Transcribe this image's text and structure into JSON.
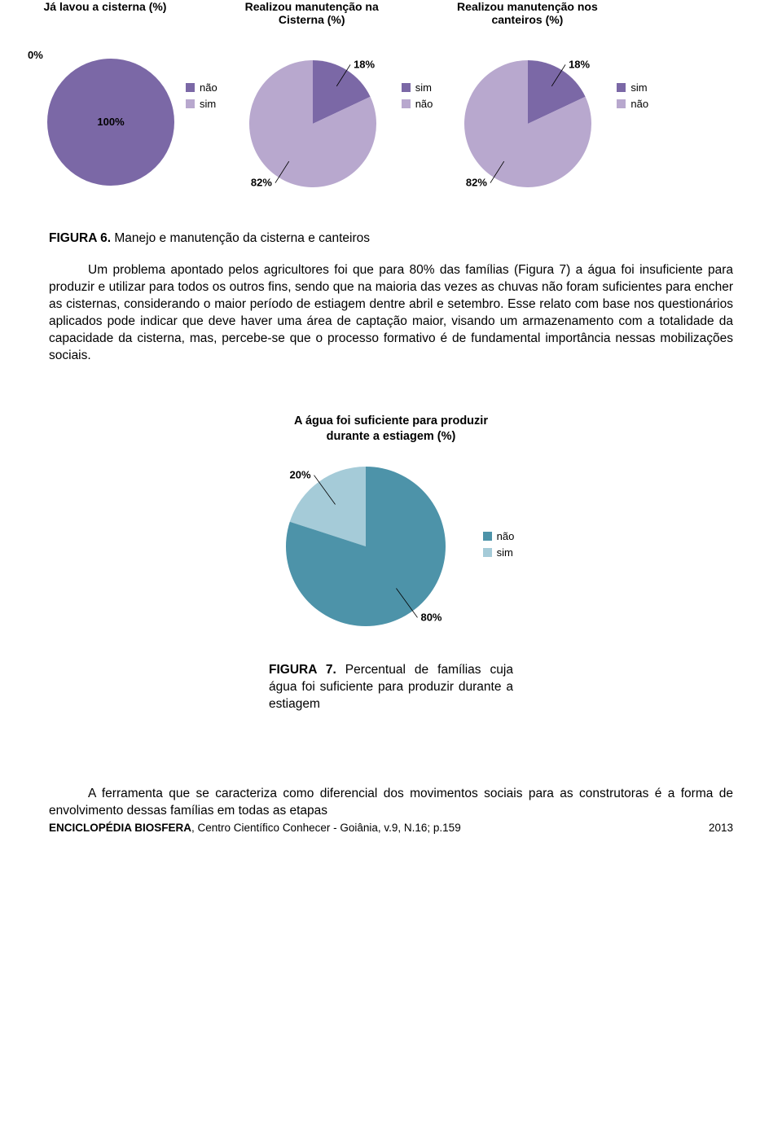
{
  "colors": {
    "purple_dark": "#7b68a6",
    "purple_light": "#b8a8ce",
    "teal_dark": "#4d93a9",
    "teal_light": "#a5cbd8",
    "text": "#000000"
  },
  "topCharts": {
    "chart1": {
      "title": "Já lavou a cisterna (%)",
      "type": "pie",
      "radius": 80,
      "single_label_pos": "left",
      "slices": [
        {
          "label": "não",
          "value": 100,
          "color": "#7b68a6"
        },
        {
          "label": "sim",
          "value": 0,
          "color": "#b8a8ce"
        }
      ],
      "outside_label": "0%",
      "legend": [
        {
          "label": "não",
          "swatch": "#7b68a6"
        },
        {
          "label": "sim",
          "swatch": "#b8a8ce"
        }
      ],
      "main_label": "100%"
    },
    "chart2": {
      "title": "Realizou manutenção na Cisterna (%)",
      "type": "pie",
      "radius": 80,
      "slices": [
        {
          "label": "sim",
          "value": 18,
          "color": "#7b68a6",
          "label_text": "18%"
        },
        {
          "label": "não",
          "value": 82,
          "color": "#b8a8ce",
          "label_text": "82%"
        }
      ],
      "legend": [
        {
          "label": "sim",
          "swatch": "#7b68a6"
        },
        {
          "label": "não",
          "swatch": "#b8a8ce"
        }
      ]
    },
    "chart3": {
      "title": "Realizou manutenção nos canteiros (%)",
      "type": "pie",
      "radius": 80,
      "slices": [
        {
          "label": "sim",
          "value": 18,
          "color": "#7b68a6",
          "label_text": "18%"
        },
        {
          "label": "não",
          "value": 82,
          "color": "#b8a8ce",
          "label_text": "82%"
        }
      ],
      "legend": [
        {
          "label": "sim",
          "swatch": "#7b68a6"
        },
        {
          "label": "não",
          "swatch": "#b8a8ce"
        }
      ]
    }
  },
  "midChart": {
    "title": "A água foi suficiente para produzir durante a estiagem (%)",
    "type": "pie",
    "radius": 100,
    "slices": [
      {
        "label": "sim",
        "value": 20,
        "color": "#a5cbd8",
        "label_text": "20%"
      },
      {
        "label": "não",
        "value": 80,
        "color": "#4d93a9",
        "label_text": "80%"
      }
    ],
    "legend": [
      {
        "label": "não",
        "swatch": "#4d93a9"
      },
      {
        "label": "sim",
        "swatch": "#a5cbd8"
      }
    ]
  },
  "fig6": {
    "label": "FIGURA 6.",
    "text": " Manejo e manutenção da cisterna e canteiros"
  },
  "para1": "Um problema apontado pelos agricultores foi que para 80% das famílias (Figura 7) a água foi insuficiente para produzir e utilizar para todos os outros fins, sendo que na maioria das vezes as chuvas não foram suficientes para encher as cisternas, considerando o maior período de estiagem dentre abril e setembro. Esse relato com base nos questionários aplicados pode indicar que deve haver uma área de captação maior, visando um armazenamento com a totalidade da capacidade da cisterna, mas, percebe-se que o processo formativo é de fundamental importância nessas mobilizações sociais.",
  "fig7": {
    "label": "FIGURA 7.",
    "text": "Percentual de famílias cuja água foi suficiente para produzir durante a estiagem"
  },
  "para2": "A ferramenta que se caracteriza como diferencial dos movimentos sociais para as construtoras é a forma de envolvimento dessas famílias em todas as etapas",
  "footer": {
    "left_bold": "ENCICLOPÉDIA BIOSFERA",
    "left_rest": ", Centro Científico Conhecer - Goiânia, v.9, N.16; p.",
    "page": "159",
    "year": "2013"
  }
}
